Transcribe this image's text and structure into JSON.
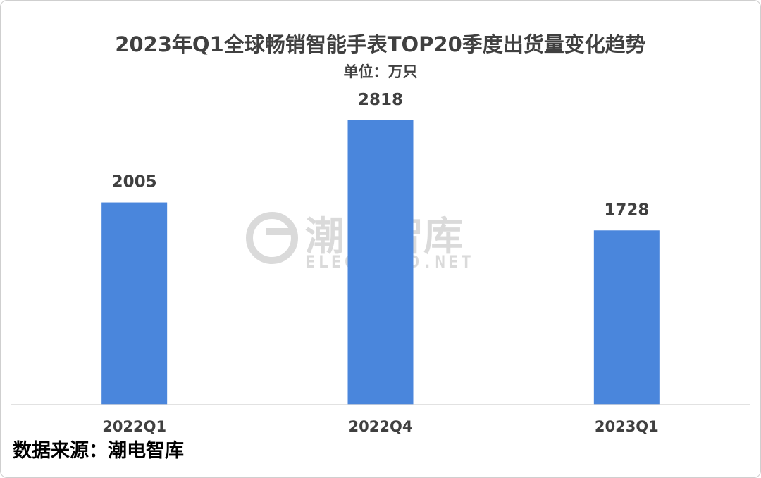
{
  "chart_data": {
    "type": "bar",
    "title": "2023年Q1全球畅销智能手表TOP20季度出货量变化趋势",
    "subtitle": "单位：万只",
    "categories": [
      "2022Q1",
      "2022Q4",
      "2023Q1"
    ],
    "values": [
      2005,
      2818,
      1728
    ],
    "data_labels": [
      "2005",
      "2818",
      "1728"
    ],
    "ylim": [
      0,
      2818
    ],
    "grid": false,
    "legend": "none",
    "bar_color": "#4a86dc"
  },
  "watermark": {
    "cn": "潮电智库",
    "en": "ELECTREND.NET"
  },
  "source": "数据来源：潮电智库",
  "colors": {
    "text": "#404040",
    "axis": "#d9d9d9",
    "watermark": "#c8c8c8"
  }
}
